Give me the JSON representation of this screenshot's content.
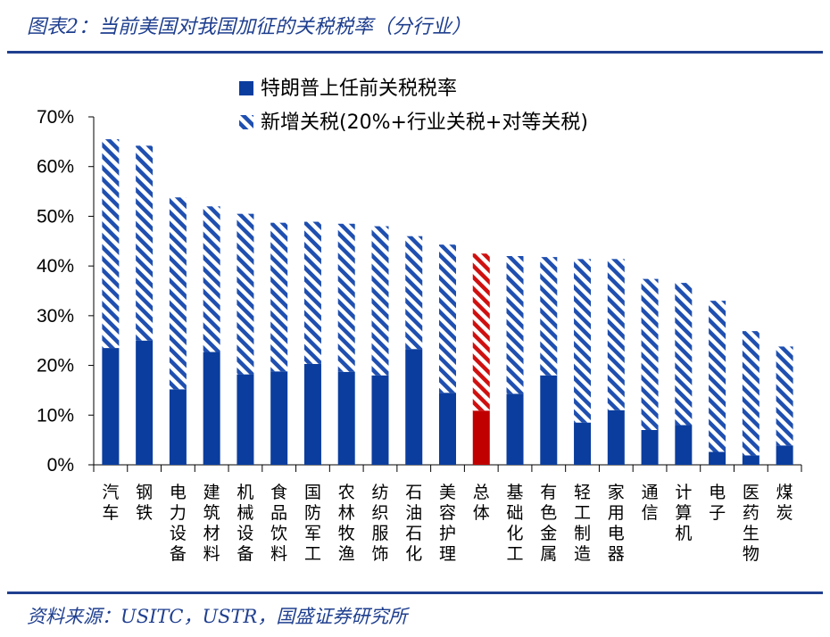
{
  "figure": {
    "title": "图表2：当前美国对我国加征的关税税率（分行业）",
    "source": "资料来源：USITC，USTR，国盛证券研究所"
  },
  "colors": {
    "base": "#0b3d9e",
    "hatch": "#1f4fb0",
    "highlight_base": "#c00000",
    "highlight_hatch": "#d01010",
    "rule": "#1f3f8f"
  },
  "chart_data": {
    "type": "bar",
    "stacked": true,
    "title": "",
    "xlabel": "",
    "ylabel": "",
    "ylim": [
      0,
      70
    ],
    "yticks": [
      0,
      10,
      20,
      30,
      40,
      50,
      60,
      70
    ],
    "ytick_format": "percent",
    "legend_position": "top",
    "highlight_category": "总体",
    "categories": [
      "汽车",
      "钢铁",
      "电力设备",
      "建筑材料",
      "机械设备",
      "食品饮料",
      "国防军工",
      "农林牧渔",
      "纺织服饰",
      "石油石化",
      "美容护理",
      "总体",
      "基础化工",
      "有色金属",
      "轻工制造",
      "家用电器",
      "通信",
      "计算机",
      "电子",
      "医药生物",
      "煤炭"
    ],
    "series": [
      {
        "name": "特朗普上任前关税税率",
        "pattern": "solid",
        "values": [
          23.5,
          25.0,
          15.2,
          22.7,
          18.2,
          18.8,
          20.3,
          18.7,
          18.0,
          23.3,
          14.5,
          10.9,
          14.3,
          18.0,
          8.5,
          11.0,
          7.0,
          8.0,
          2.6,
          1.9,
          3.9
        ]
      },
      {
        "name": "新增关税(20%+行业关税+对等关税)",
        "pattern": "hatched",
        "values": [
          42.0,
          39.2,
          38.6,
          29.3,
          32.3,
          29.9,
          28.6,
          29.8,
          30.0,
          22.7,
          29.8,
          31.6,
          27.7,
          23.8,
          32.9,
          30.4,
          30.4,
          28.6,
          30.4,
          25.0,
          19.9
        ]
      }
    ]
  }
}
